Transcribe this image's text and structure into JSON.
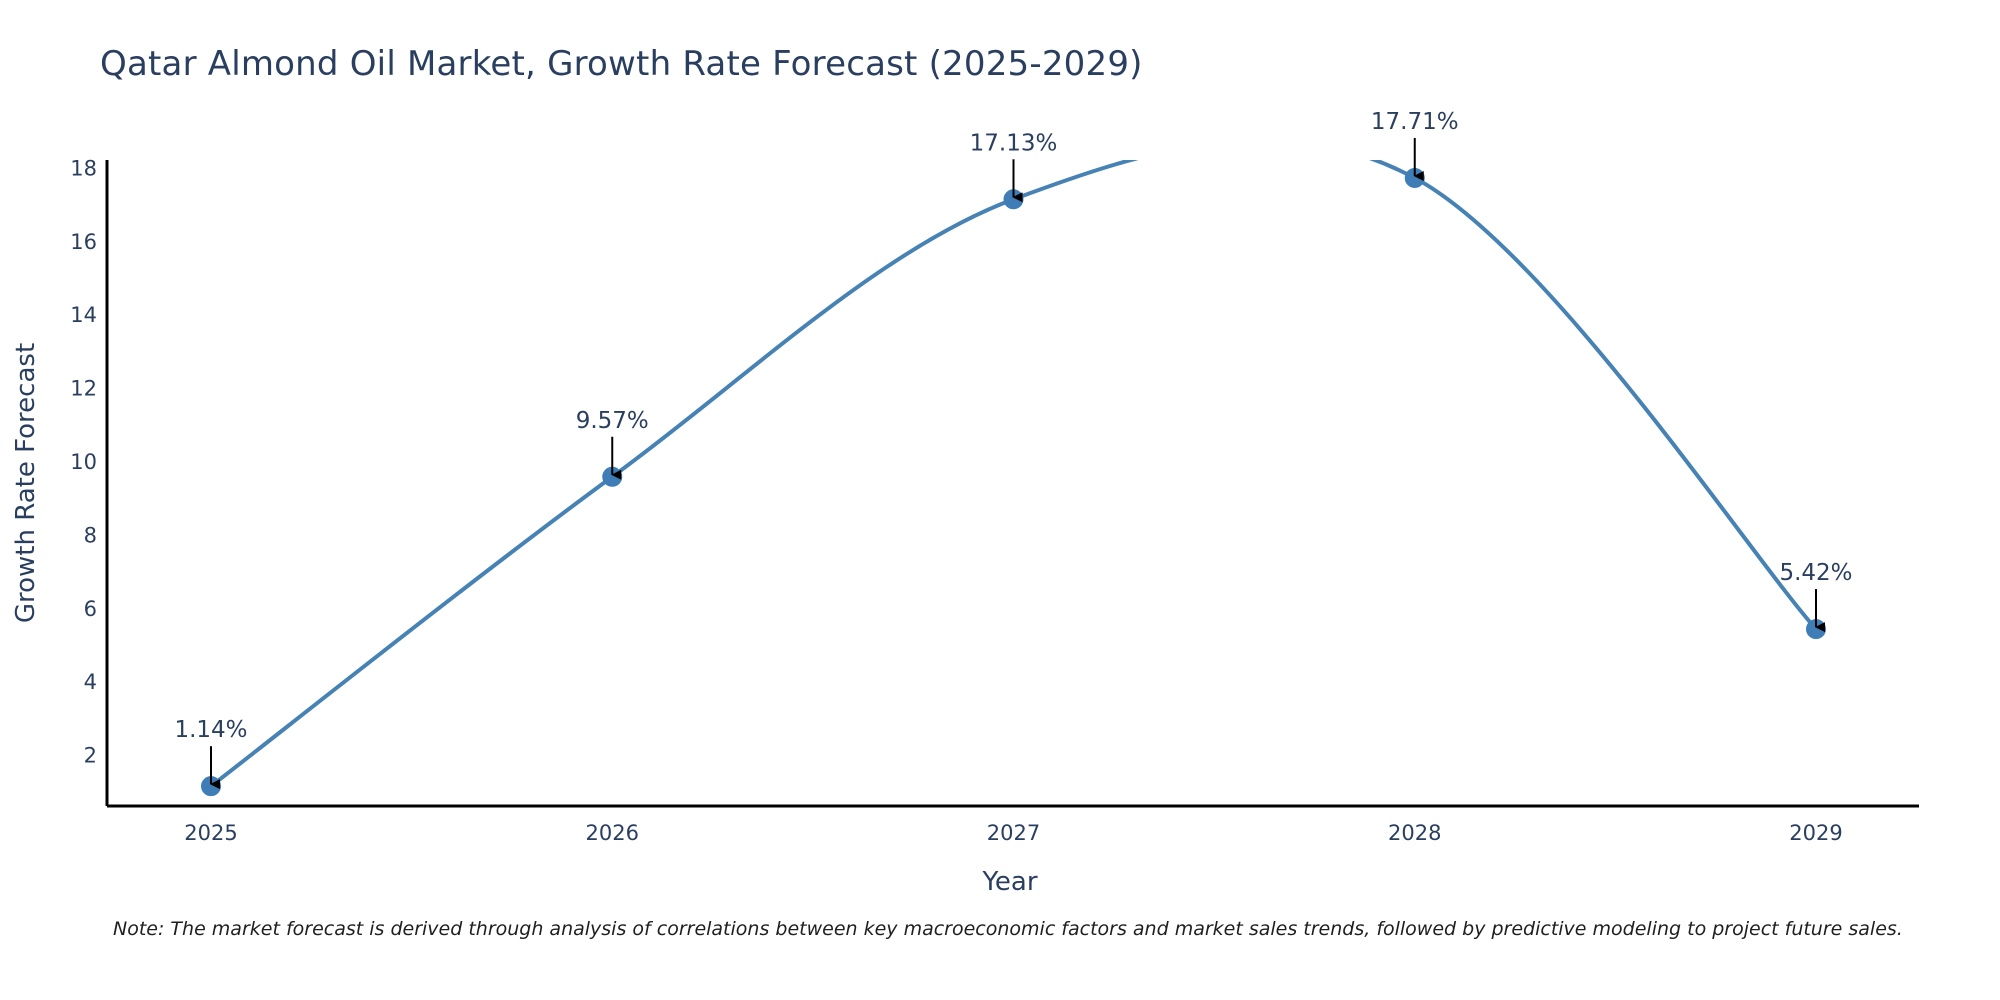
{
  "chart_data": {
    "type": "line",
    "title": "Qatar Almond Oil Market, Growth Rate Forecast (2025-2029)",
    "xlabel": "Year",
    "ylabel": "Growth Rate Forecast",
    "categories": [
      "2025",
      "2026",
      "2027",
      "2028",
      "2029"
    ],
    "series": [
      {
        "name": "Growth Rate Forecast",
        "values": [
          1.14,
          9.57,
          17.13,
          17.71,
          5.42
        ]
      }
    ],
    "annotations": [
      "1.14%",
      "9.57%",
      "17.13%",
      "17.71%",
      "5.42%"
    ],
    "y_ticks": [
      2,
      4,
      6,
      8,
      10,
      12,
      14,
      16,
      18
    ],
    "ylim": [
      0.6,
      18.2
    ],
    "line_shape": "spline",
    "grid": false,
    "legend": "none",
    "colors": {
      "line": "#4682b4",
      "marker": "#3f7db7",
      "axis": "#000000",
      "arrow": "#000000"
    }
  },
  "note": "Note: The market forecast is derived through analysis of correlations between key macroeconomic factors and market sales trends, followed by predictive modeling to project future sales."
}
